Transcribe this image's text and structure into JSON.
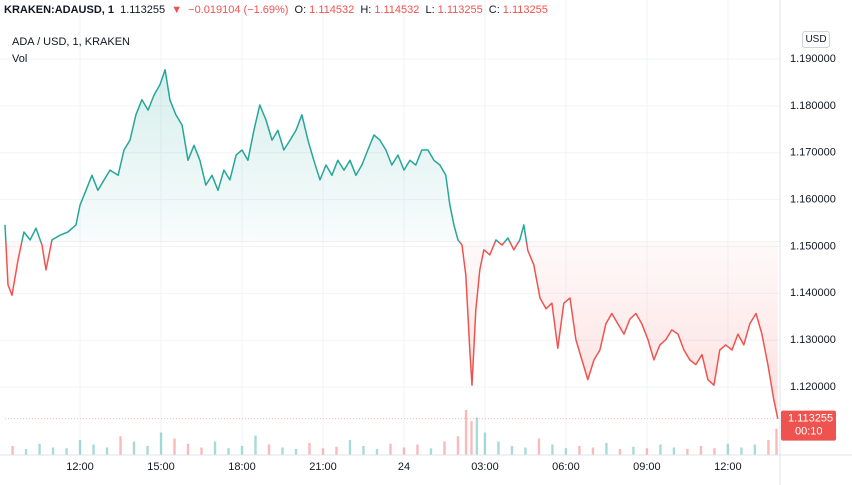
{
  "header": {
    "symbol": "KRAKEN:ADAUSD, 1",
    "price": "1.113255",
    "arrow": "▼",
    "change": "−0.019104 (−1.69%)",
    "o_label": "O:",
    "o_value": "1.114532",
    "h_label": "H:",
    "h_value": "1.114532",
    "l_label": "L:",
    "l_value": "1.113255",
    "c_label": "C:",
    "c_value": "1.113255"
  },
  "legend": {
    "name": "ADA / USD, 1, KRAKEN",
    "volume": "Vol"
  },
  "currency": "USD",
  "chart_data": {
    "type": "baseline",
    "x": [
      9.22,
      9.33,
      9.48,
      9.7,
      9.92,
      10.15,
      10.37,
      10.59,
      10.74,
      10.96,
      11.26,
      11.55,
      11.85,
      12.0,
      12.22,
      12.44,
      12.66,
      12.89,
      13.11,
      13.41,
      13.63,
      13.85,
      14.07,
      14.29,
      14.52,
      14.74,
      14.96,
      15.15,
      15.33,
      15.55,
      15.78,
      16.0,
      16.22,
      16.44,
      16.66,
      16.89,
      17.11,
      17.33,
      17.55,
      17.78,
      18.0,
      18.22,
      18.44,
      18.66,
      18.89,
      19.11,
      19.33,
      19.55,
      19.78,
      20.0,
      20.22,
      20.44,
      20.66,
      20.89,
      21.11,
      21.33,
      21.55,
      21.78,
      22.0,
      22.22,
      22.44,
      22.66,
      22.89,
      23.11,
      23.33,
      23.55,
      23.78,
      24.0,
      24.22,
      24.44,
      24.66,
      24.89,
      25.11,
      25.33,
      25.55,
      25.7,
      25.85,
      26.0,
      26.15,
      26.29,
      26.44,
      26.52,
      26.66,
      26.81,
      26.96,
      27.18,
      27.41,
      27.63,
      27.85,
      28.07,
      28.29,
      28.44,
      28.59,
      28.81,
      29.04,
      29.26,
      29.48,
      29.7,
      29.92,
      30.15,
      30.37,
      30.59,
      30.81,
      31.04,
      31.26,
      31.48,
      31.7,
      31.92,
      32.15,
      32.37,
      32.59,
      32.81,
      33.04,
      33.26,
      33.48,
      33.7,
      33.92,
      34.15,
      34.37,
      34.59,
      34.81,
      35.04,
      35.26,
      35.48,
      35.7,
      35.92,
      36.15,
      36.37,
      36.59,
      36.81,
      37.04,
      37.26,
      37.48,
      37.7,
      37.85
    ],
    "values": [
      1.1546,
      1.1418,
      1.1396,
      1.1471,
      1.1531,
      1.1514,
      1.1539,
      1.1503,
      1.145,
      1.1514,
      1.1524,
      1.1531,
      1.1546,
      1.1588,
      1.162,
      1.1652,
      1.162,
      1.1642,
      1.1663,
      1.1652,
      1.1706,
      1.1727,
      1.1781,
      1.1813,
      1.1791,
      1.1823,
      1.1845,
      1.1877,
      1.1813,
      1.1781,
      1.1759,
      1.1684,
      1.1716,
      1.1684,
      1.1631,
      1.1652,
      1.162,
      1.1663,
      1.1642,
      1.1695,
      1.1706,
      1.1684,
      1.1748,
      1.1802,
      1.177,
      1.1727,
      1.1748,
      1.1706,
      1.1727,
      1.1748,
      1.1781,
      1.1727,
      1.1684,
      1.1642,
      1.1674,
      1.1652,
      1.1684,
      1.1663,
      1.1684,
      1.1652,
      1.1674,
      1.1706,
      1.1738,
      1.1727,
      1.1706,
      1.1674,
      1.1695,
      1.1663,
      1.1684,
      1.1674,
      1.1706,
      1.1706,
      1.1684,
      1.1674,
      1.1652,
      1.1588,
      1.1546,
      1.1514,
      1.1503,
      1.1439,
      1.1279,
      1.1204,
      1.1364,
      1.145,
      1.1493,
      1.1482,
      1.1514,
      1.1503,
      1.1518,
      1.1493,
      1.1514,
      1.1546,
      1.1491,
      1.1461,
      1.139,
      1.1367,
      1.1379,
      1.1283,
      1.1379,
      1.139,
      1.1301,
      1.1258,
      1.1216,
      1.1258,
      1.1279,
      1.1335,
      1.1357,
      1.1335,
      1.1313,
      1.1345,
      1.1357,
      1.1335,
      1.1301,
      1.1258,
      1.129,
      1.1301,
      1.1322,
      1.1313,
      1.1279,
      1.1258,
      1.1248,
      1.1269,
      1.1216,
      1.1204,
      1.1279,
      1.129,
      1.1279,
      1.1313,
      1.129,
      1.1335,
      1.1357,
      1.1313,
      1.1248,
      1.1173,
      1.113255
    ],
    "baseline": 1.151,
    "colors": {
      "above": "#26a69a",
      "below": "#ef5350"
    },
    "last_price": 1.113255,
    "last_price_label": "1.113255",
    "countdown": "00:10",
    "volume": {
      "x": [
        9.5,
        10,
        10.5,
        11,
        11.5,
        12,
        12.5,
        13,
        13.5,
        14,
        14.5,
        15,
        15.5,
        16,
        16.5,
        17,
        17.5,
        18,
        18.5,
        19,
        19.5,
        20,
        20.5,
        21,
        21.5,
        22,
        22.5,
        23,
        23.5,
        24,
        24.5,
        25,
        25.5,
        26,
        26.3,
        26.5,
        26.7,
        27,
        27.5,
        28,
        28.5,
        29,
        29.5,
        30,
        30.5,
        31,
        31.5,
        32,
        32.5,
        33,
        33.5,
        34,
        34.5,
        35,
        35.5,
        36,
        36.5,
        37,
        37.5,
        37.8
      ],
      "values": [
        12,
        8,
        15,
        10,
        9,
        20,
        14,
        10,
        25,
        18,
        12,
        30,
        22,
        15,
        10,
        18,
        9,
        12,
        26,
        14,
        10,
        8,
        16,
        9,
        11,
        20,
        12,
        8,
        15,
        10,
        14,
        9,
        18,
        25,
        60,
        45,
        50,
        30,
        18,
        12,
        10,
        22,
        14,
        9,
        12,
        10,
        16,
        8,
        11,
        9,
        14,
        10,
        8,
        12,
        9,
        15,
        10,
        14,
        20,
        35
      ]
    },
    "xlim": [
      9.22,
      37.93
    ],
    "ylim": [
      1.1055,
      1.1962
    ],
    "xticks": [
      {
        "value": 12,
        "label": "12:00"
      },
      {
        "value": 15,
        "label": "15:00"
      },
      {
        "value": 18,
        "label": "18:00"
      },
      {
        "value": 21,
        "label": "21:00"
      },
      24,
      {
        "value": 27,
        "label": "03:00"
      },
      {
        "value": 30,
        "label": "06:00"
      },
      {
        "value": 33,
        "label": "09:00"
      },
      {
        "value": 36,
        "label": "12:00"
      }
    ],
    "yticks": [
      {
        "value": 1.12,
        "label": "1.120000"
      },
      {
        "value": 1.13,
        "label": "1.130000"
      },
      {
        "value": 1.14,
        "label": "1.140000"
      },
      {
        "value": 1.15,
        "label": "1.150000"
      },
      {
        "value": 1.16,
        "label": "1.160000"
      },
      {
        "value": 1.17,
        "label": "1.170000"
      },
      {
        "value": 1.18,
        "label": "1.180000"
      },
      {
        "value": 1.19,
        "label": "1.190000"
      }
    ],
    "grid": true
  }
}
